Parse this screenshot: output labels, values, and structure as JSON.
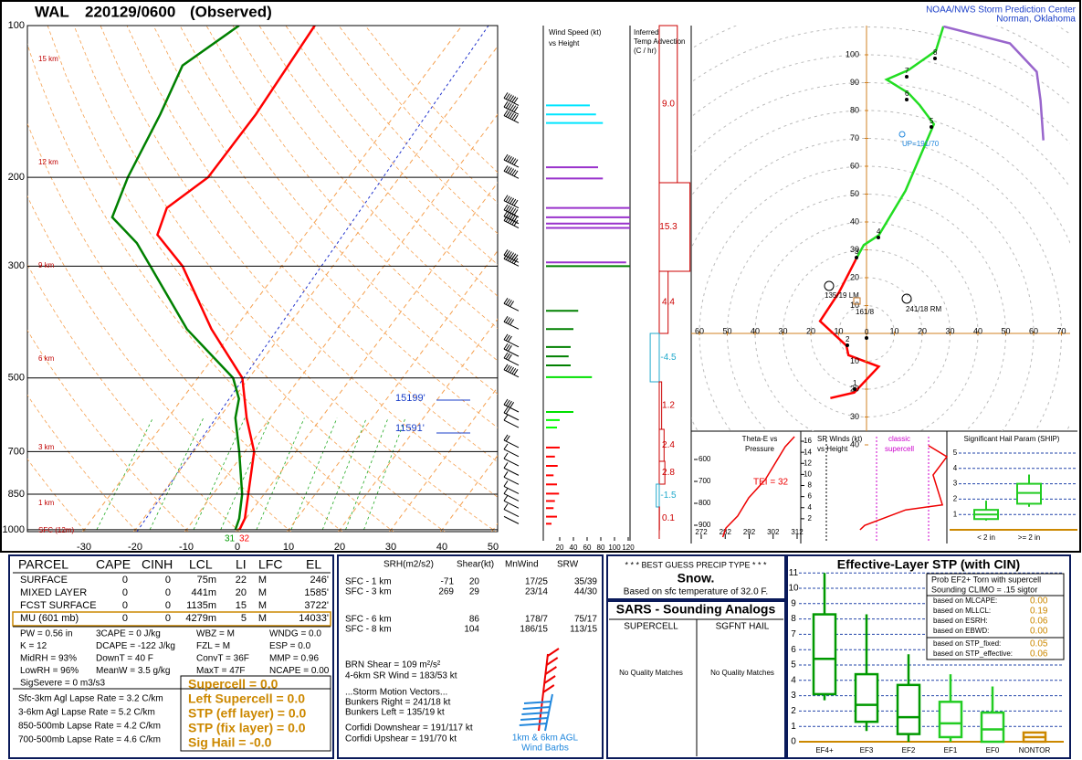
{
  "header": {
    "station": "WAL",
    "time": "220129/0600",
    "status": "(Observed)",
    "org": "NOAA/NWS Storm Prediction Center",
    "location": "Norman, Oklahoma"
  },
  "skewt": {
    "pressure_ticks": [
      100,
      200,
      300,
      500,
      700,
      850,
      1000
    ],
    "temp_ticks": [
      -30,
      -20,
      -10,
      0,
      10,
      20,
      30,
      40,
      50
    ],
    "height_labels": [
      "15 km",
      "12 km",
      "9 km",
      "6 km",
      "3 km",
      "1 km",
      "SFC (12m)"
    ],
    "temperature": {
      "color": "#ff0000",
      "p": [
        1000,
        950,
        850,
        700,
        600,
        500,
        400,
        300,
        260,
        230,
        200,
        150,
        100
      ],
      "t": [
        0.4,
        -0.2,
        -3.1,
        -8.2,
        -14.6,
        -21.3,
        -34.5,
        -49.4,
        -58.9,
        -61,
        -57.4,
        -57.3,
        -58.8
      ]
    },
    "dewpoint": {
      "color": "#008000",
      "p": [
        1000,
        950,
        850,
        700,
        600,
        550,
        500,
        400,
        300,
        270,
        240,
        200,
        150,
        120,
        100
      ],
      "t": [
        -0.4,
        -1.3,
        -4.3,
        -11.1,
        -16.8,
        -18.9,
        -23.1,
        -39.3,
        -55.7,
        -61.7,
        -70.3,
        -73.1,
        -76,
        -78.8,
        -73.6
      ]
    },
    "level_labels": [
      "15199'",
      "11591'"
    ],
    "sfc_td": "31",
    "sfc_t": "32"
  },
  "wind_profile": {
    "title": [
      "Wind Speed (kt)",
      "vs Height"
    ],
    "ticks": [
      20,
      40,
      60,
      80,
      100,
      120
    ],
    "p": [
      144,
      150,
      156,
      191,
      201,
      230,
      240,
      247,
      252,
      295,
      300,
      368,
      400,
      434,
      453,
      472,
      498,
      584,
      606,
      627,
      687,
      716,
      747,
      780,
      813,
      848,
      877,
      906,
      942,
      973
    ],
    "kt": [
      64,
      73,
      83,
      76,
      83,
      124,
      127,
      127,
      127,
      117,
      124,
      47,
      40,
      36,
      33,
      36,
      67,
      40,
      20,
      16,
      20,
      13,
      17,
      11,
      16,
      19,
      13,
      11,
      16,
      8
    ],
    "color": [
      "#00e5ff",
      "#00e5ff",
      "#00e5ff",
      "#9932cc",
      "#9932cc",
      "#9932cc",
      "#9932cc",
      "#9932cc",
      "#9932cc",
      "#9932cc",
      "#008000",
      "#008000",
      "#008000",
      "#008000",
      "#008000",
      "#008000",
      "#00e000",
      "#00e000",
      "#00ff00",
      "#00ff00",
      "#ff0000",
      "#ff0000",
      "#ff0000",
      "#ff0000",
      "#ff0000",
      "#ff0000",
      "#ff0000",
      "#ff0000",
      "#ff0000",
      "#ff0000"
    ]
  },
  "temp_advection": {
    "title": [
      "Inferred",
      "Temp Advection",
      "(C / hr)"
    ],
    "values": [
      9,
      15.3,
      4.4,
      -4.5,
      1.2,
      2.4,
      2.8,
      -1.5,
      0.1
    ],
    "value_labels": [
      "9.0",
      "15.3",
      "4.4",
      "-4.5",
      "1.2",
      "2.4",
      "2.8",
      "-1.5",
      "0.1"
    ]
  },
  "hodograph": {
    "xticks": [
      {
        "value": -60,
        "label": "60"
      },
      {
        "value": -50,
        "label": "50"
      },
      {
        "value": -40,
        "label": "40"
      },
      {
        "value": -30,
        "label": "30"
      },
      {
        "value": -20,
        "label": "20"
      },
      {
        "value": -10,
        "label": "10"
      },
      10,
      20,
      30,
      40,
      50,
      60,
      70
    ],
    "yticks": [
      {
        "value": -40,
        "label": "40"
      },
      {
        "value": -30,
        "label": "30"
      },
      {
        "value": -20,
        "label": "20"
      },
      {
        "value": -10,
        "label": "10"
      },
      10,
      20,
      30,
      40,
      50,
      60,
      70,
      80,
      90,
      100
    ],
    "segments": [
      {
        "color": "#ff0000",
        "u": [
          -13,
          -4.4,
          4.4,
          -6.5,
          -7.2,
          -16.7,
          -9.9,
          -3.8
        ],
        "v": [
          -23.2,
          -21.2,
          -11.9,
          -7.8,
          -4.4,
          4.4,
          14.7,
          26.6
        ]
      },
      {
        "color": "#22dd22",
        "u": [
          -3.8,
          -1,
          4.4,
          14,
          24.2,
          19.1,
          15,
          7.2,
          15,
          24.9,
          27.6
        ],
        "v": [
          26.6,
          31.7,
          35.2,
          51.2,
          75.1,
          81.9,
          86.3,
          91.1,
          94.5,
          101.4,
          110.2
        ]
      },
      {
        "color": "#9966cc",
        "u": [
          27.6,
          51.5,
          61.1,
          62.5,
          63.5
        ],
        "v": [
          110.2,
          104.1,
          93.9,
          83.6,
          69.3
        ]
      }
    ],
    "km_labels": [
      "0",
      "1",
      "2",
      "3",
      "4",
      "5",
      "6",
      "7",
      "8"
    ],
    "annotations": [
      "UP=191/70",
      "135/19 LM",
      "161/8",
      "241/18 RM"
    ]
  },
  "theta_e": {
    "title": [
      "Theta-E vs",
      "Pressure"
    ],
    "pticks": [
      600,
      700,
      800,
      900
    ],
    "xticks": [
      272,
      282,
      292,
      302,
      312
    ],
    "p": [
      496,
      542,
      692,
      775,
      858,
      913,
      954
    ],
    "theta": [
      310.9,
      307,
      298.7,
      291.8,
      287.2,
      282.3,
      281
    ],
    "tei": "TEI = 32"
  },
  "sr_winds": {
    "title": [
      "SR Winds (kt)",
      "vs Height"
    ],
    "note": [
      "classic",
      "supercell"
    ],
    "ticks": [
      2,
      4,
      6,
      8,
      10,
      12,
      14,
      16
    ],
    "h": [
      0,
      0.8,
      3.6,
      4.5,
      9.9,
      13.2,
      15.2
    ],
    "kt": [
      31.6,
      34.2,
      57.1,
      77.6,
      72.4,
      80.1,
      69.9
    ]
  },
  "ship": {
    "title": "Significant Hail Param (SHIP)",
    "yticks": [
      1,
      2,
      3,
      4,
      5
    ],
    "categories": [
      "< 2 in",
      ">= 2 in"
    ],
    "low": [
      0.6,
      1.5
    ],
    "q1": [
      0.7,
      1.7
    ],
    "median": [
      1,
      2.4
    ],
    "q3": [
      1.3,
      3
    ],
    "high": [
      1.9,
      3.6
    ]
  },
  "parcel_table": {
    "header": [
      "PARCEL",
      "CAPE",
      "CINH",
      "LCL",
      "LI",
      "LFC",
      "EL"
    ],
    "rows": [
      [
        "SURFACE",
        0,
        0,
        "75m",
        22,
        "M",
        "246'"
      ],
      [
        "MIXED LAYER",
        0,
        0,
        "441m",
        20,
        "M",
        "1585'"
      ],
      [
        "FCST SURFACE",
        0,
        0,
        "1135m",
        15,
        "M",
        "3722'"
      ],
      [
        "MU (601 mb)",
        0,
        0,
        "4279m",
        5,
        "M",
        "14033'"
      ]
    ]
  },
  "params": [
    [
      "PW = 0.56 in",
      "3CAPE = 0 J/kg",
      "WBZ = M",
      "WNDG = 0.0"
    ],
    [
      "K = 12",
      "DCAPE = -122 J/kg",
      "FZL = M",
      "ESP = 0.0"
    ],
    [
      "MidRH = 93%",
      "DownT = 40 F",
      "ConvT = 36F",
      "MMP = 0.96"
    ],
    [
      "LowRH = 96%",
      "MeanW = 3.5 g/kg",
      "MaxT = 47F",
      "NCAPE = 0.00"
    ],
    [
      "SigSevere = 0 m3/s3"
    ]
  ],
  "lapse_rates": [
    "Sfc-3km Agl Lapse Rate = 3.2 C/km",
    "3-6km Agl Lapse Rate = 5.2 C/km",
    "850-500mb Lapse Rate = 4.2 C/km",
    "700-500mb Lapse Rate = 4.6 C/km"
  ],
  "composites": [
    "Supercell = 0.0",
    "Left Supercell = 0.0",
    "STP (eff layer) = 0.0",
    "STP (fix layer) = 0.0",
    "Sig Hail = -0.0"
  ],
  "kinematics": {
    "header": [
      "SRH(m2/s2)",
      "Shear(kt)",
      "MnWind",
      "SRW"
    ],
    "rows": [
      [
        "SFC - 1 km",
        "-71",
        "20",
        "17/25",
        "35/39"
      ],
      [
        "SFC - 3 km",
        "269",
        "29",
        "23/14",
        "44/30"
      ],
      [
        "SFC - 6 km",
        null,
        "86",
        "178/7",
        "75/17"
      ],
      [
        "SFC - 8 km",
        null,
        "104",
        "186/15",
        "113/15"
      ]
    ],
    "lines": [
      "BRN Shear = 109 m²/s²",
      "4-6km SR Wind = 183/53 kt",
      "...Storm Motion Vectors...",
      "Bunkers Right = 241/18 kt",
      "Bunkers Left = 135/19 kt",
      "Corfidi Downshear = 191/117 kt",
      "Corfidi Upshear = 191/70 kt"
    ],
    "barb_legend": [
      "1km & 6km AGL",
      "Wind Barbs"
    ]
  },
  "precip": {
    "title": "* * * BEST GUESS PRECIP TYPE * * *",
    "type": "Snow.",
    "basis": "Based on sfc temperature of 32.0 F."
  },
  "sars": {
    "title": "SARS - Sounding Analogs",
    "columns": [
      "SUPERCELL",
      "SGFNT HAIL"
    ],
    "results": [
      "No Quality Matches",
      "No Quality Matches"
    ]
  },
  "stp": {
    "title": "Effective-Layer STP (with CIN)",
    "yticks": [
      0,
      1,
      2,
      3,
      4,
      5,
      6,
      7,
      8,
      9,
      10,
      11
    ],
    "categories": [
      "EF4+",
      "EF3",
      "EF2",
      "EF1",
      "EF0",
      "NONTOR"
    ],
    "colors": [
      "#009900",
      "#009900",
      "#009900",
      "#22cc22",
      "#22cc22",
      "#cc8800"
    ],
    "low": [
      2.7,
      0.7,
      0,
      0,
      0,
      0
    ],
    "q1": [
      3.1,
      1.3,
      0.5,
      0.3,
      0,
      0
    ],
    "median": [
      5.4,
      2.4,
      1.6,
      1.2,
      0.8,
      0.3
    ],
    "q3": [
      8.3,
      4.4,
      3.7,
      2.6,
      1.9,
      0.6
    ],
    "high": [
      11,
      8.3,
      5.7,
      4.4,
      3.6,
      0.6
    ],
    "info_title": [
      "Prob EF2+ Torn with supercell",
      "Sounding CLIMO = .15 sigtor"
    ],
    "info": [
      [
        "based on MLCAPE:",
        "0.00"
      ],
      [
        "based on MLLCL:",
        "0.19"
      ],
      [
        "based on ESRH:",
        "0.06"
      ],
      [
        "based on EBWD:",
        "0.00"
      ],
      [
        "based on STP_fixed:",
        "0.05"
      ],
      [
        "based on STP_effective:",
        "0.06"
      ]
    ]
  }
}
